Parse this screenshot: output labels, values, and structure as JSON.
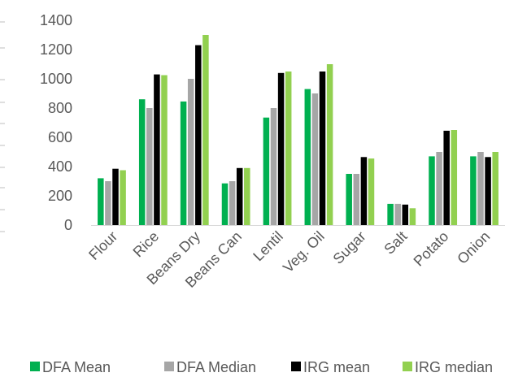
{
  "chart_data": {
    "type": "bar",
    "title": "",
    "xlabel": "",
    "ylabel": "",
    "ylim": [
      0,
      1400
    ],
    "yticks": [
      0,
      200,
      400,
      600,
      800,
      1000,
      1200,
      1400
    ],
    "ytick_labels": [
      "0",
      "200",
      "400",
      "600",
      "800",
      "1000",
      "1200",
      "1400"
    ],
    "grid": false,
    "legend_position": "bottom",
    "categories": [
      "Flour",
      "Rice",
      "Beans Dry",
      "Beans Can",
      "Lentil",
      "Veg. Oil",
      "Sugar",
      "Salt",
      "Potato",
      "Onion"
    ],
    "series": [
      {
        "name": "DFA Mean",
        "color": "#00b050",
        "values": [
          320,
          860,
          845,
          285,
          735,
          930,
          350,
          145,
          470,
          470
        ]
      },
      {
        "name": "DFA Median",
        "color": "#a6a6a6",
        "values": [
          300,
          800,
          1000,
          300,
          800,
          900,
          350,
          145,
          500,
          500
        ]
      },
      {
        "name": "IRG  mean",
        "color": "#000000",
        "values": [
          385,
          1030,
          1230,
          390,
          1040,
          1050,
          465,
          140,
          645,
          465
        ]
      },
      {
        "name": "IRG  median",
        "color": "#92d050",
        "values": [
          375,
          1025,
          1300,
          390,
          1050,
          1100,
          455,
          115,
          650,
          500
        ]
      }
    ]
  }
}
